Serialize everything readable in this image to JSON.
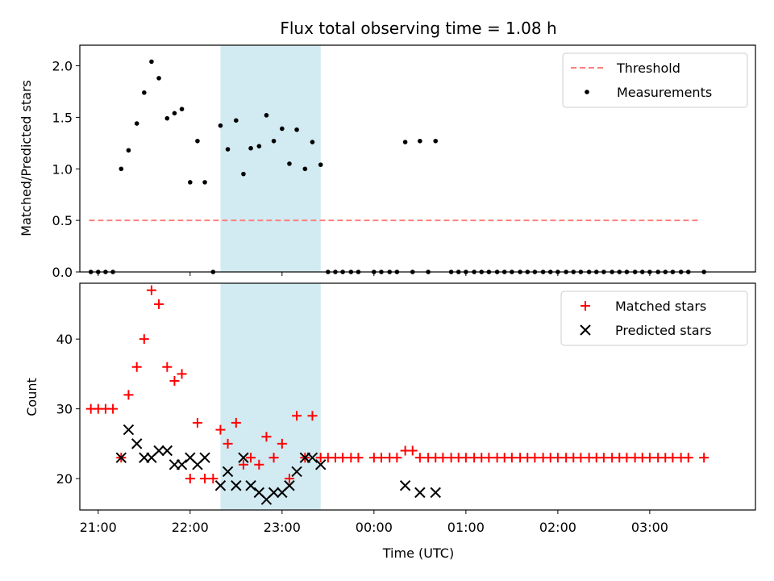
{
  "chart_data": [
    {
      "type": "scatter",
      "title": "Flux total observing time = 1.08 h",
      "ylabel": "Matched/Predicted stars",
      "xlim": [
        -3.2,
        4.15
      ],
      "ylim": [
        0,
        2.2
      ],
      "x_ticks": [
        {
          "value": -3,
          "label": ""
        },
        {
          "value": -2,
          "label": ""
        },
        {
          "value": -1,
          "label": ""
        },
        {
          "value": 0,
          "label": ""
        },
        {
          "value": 1,
          "label": ""
        },
        {
          "value": 2,
          "label": ""
        },
        {
          "value": 3,
          "label": ""
        }
      ],
      "y_ticks": [
        {
          "value": 0,
          "label": "0.0"
        },
        {
          "value": 0.5,
          "label": "0.5"
        },
        {
          "value": 1.0,
          "label": "1.0"
        },
        {
          "value": 1.5,
          "label": "1.5"
        },
        {
          "value": 2.0,
          "label": "2.0"
        }
      ],
      "shaded_region": {
        "x": [
          -1.67,
          -0.58
        ],
        "color": "#add8e6"
      },
      "legend_position": "upper right",
      "series": [
        {
          "name": "Threshold",
          "style": "dashed-line",
          "color": "#ff7f7f",
          "points": [
            [
              -3.1,
              0.5
            ],
            [
              3.55,
              0.5
            ]
          ]
        },
        {
          "name": "Measurements",
          "style": "dot",
          "color": "#000000",
          "points": [
            [
              -3.08,
              0
            ],
            [
              -3.0,
              0
            ],
            [
              -2.92,
              0
            ],
            [
              -2.84,
              0
            ],
            [
              -2.75,
              1.0
            ],
            [
              -2.67,
              1.18
            ],
            [
              -2.58,
              1.44
            ],
            [
              -2.5,
              1.74
            ],
            [
              -2.42,
              2.04
            ],
            [
              -2.34,
              1.88
            ],
            [
              -2.25,
              1.49
            ],
            [
              -2.17,
              1.54
            ],
            [
              -2.09,
              1.58
            ],
            [
              -2.0,
              0.87
            ],
            [
              -1.92,
              1.27
            ],
            [
              -1.84,
              0.87
            ],
            [
              -1.75,
              0
            ],
            [
              -1.67,
              1.42
            ],
            [
              -1.59,
              1.19
            ],
            [
              -1.5,
              1.47
            ],
            [
              -1.42,
              0.95
            ],
            [
              -1.34,
              1.2
            ],
            [
              -1.25,
              1.22
            ],
            [
              -1.17,
              1.52
            ],
            [
              -1.09,
              1.27
            ],
            [
              -1.0,
              1.39
            ],
            [
              -0.92,
              1.05
            ],
            [
              -0.84,
              1.38
            ],
            [
              -0.75,
              1.0
            ],
            [
              -0.67,
              1.26
            ],
            [
              -0.58,
              1.04
            ],
            [
              -0.5,
              0
            ],
            [
              -0.42,
              0
            ],
            [
              -0.34,
              0
            ],
            [
              -0.25,
              0
            ],
            [
              -0.17,
              0
            ],
            [
              0.0,
              0
            ],
            [
              0.08,
              0
            ],
            [
              0.17,
              0
            ],
            [
              0.25,
              0
            ],
            [
              0.34,
              1.26
            ],
            [
              0.42,
              0
            ],
            [
              0.5,
              1.27
            ],
            [
              0.59,
              0
            ],
            [
              0.67,
              1.27
            ],
            [
              0.84,
              0
            ],
            [
              0.92,
              0
            ],
            [
              1.0,
              0
            ],
            [
              1.09,
              0
            ],
            [
              1.17,
              0
            ],
            [
              1.25,
              0
            ],
            [
              1.34,
              0
            ],
            [
              1.42,
              0
            ],
            [
              1.5,
              0
            ],
            [
              1.59,
              0
            ],
            [
              1.67,
              0
            ],
            [
              1.75,
              0
            ],
            [
              1.84,
              0
            ],
            [
              1.92,
              0
            ],
            [
              2.0,
              0
            ],
            [
              2.09,
              0
            ],
            [
              2.17,
              0
            ],
            [
              2.25,
              0
            ],
            [
              2.34,
              0
            ],
            [
              2.42,
              0
            ],
            [
              2.5,
              0
            ],
            [
              2.59,
              0
            ],
            [
              2.67,
              0
            ],
            [
              2.75,
              0
            ],
            [
              2.84,
              0
            ],
            [
              2.92,
              0
            ],
            [
              3.0,
              0
            ],
            [
              3.09,
              0
            ],
            [
              3.17,
              0
            ],
            [
              3.25,
              0
            ],
            [
              3.34,
              0
            ],
            [
              3.42,
              0
            ],
            [
              3.59,
              0
            ]
          ]
        }
      ]
    },
    {
      "type": "scatter",
      "xlabel": "Time (UTC)",
      "ylabel": "Count",
      "xlim": [
        -3.2,
        4.15
      ],
      "ylim": [
        15.5,
        48
      ],
      "x_ticks": [
        {
          "value": -3,
          "label": "21:00"
        },
        {
          "value": -2,
          "label": "22:00"
        },
        {
          "value": -1,
          "label": "23:00"
        },
        {
          "value": 0,
          "label": "00:00"
        },
        {
          "value": 1,
          "label": "01:00"
        },
        {
          "value": 2,
          "label": "02:00"
        },
        {
          "value": 3,
          "label": "03:00"
        }
      ],
      "y_ticks": [
        {
          "value": 20,
          "label": "20"
        },
        {
          "value": 30,
          "label": "30"
        },
        {
          "value": 40,
          "label": "40"
        }
      ],
      "shaded_region": {
        "x": [
          -1.67,
          -0.58
        ],
        "color": "#add8e6"
      },
      "legend_position": "upper right",
      "series": [
        {
          "name": "Matched stars",
          "style": "plus",
          "color": "#ff0000",
          "points": [
            [
              -3.08,
              30
            ],
            [
              -3.0,
              30
            ],
            [
              -2.92,
              30
            ],
            [
              -2.84,
              30
            ],
            [
              -2.75,
              23
            ],
            [
              -2.67,
              32
            ],
            [
              -2.58,
              36
            ],
            [
              -2.5,
              40
            ],
            [
              -2.42,
              47
            ],
            [
              -2.34,
              45
            ],
            [
              -2.25,
              36
            ],
            [
              -2.17,
              34
            ],
            [
              -2.09,
              35
            ],
            [
              -2.0,
              20
            ],
            [
              -1.92,
              28
            ],
            [
              -1.84,
              20
            ],
            [
              -1.75,
              20
            ],
            [
              -1.67,
              27
            ],
            [
              -1.59,
              25
            ],
            [
              -1.5,
              28
            ],
            [
              -1.42,
              22
            ],
            [
              -1.34,
              23
            ],
            [
              -1.25,
              22
            ],
            [
              -1.17,
              26
            ],
            [
              -1.09,
              23
            ],
            [
              -1.0,
              25
            ],
            [
              -0.92,
              20
            ],
            [
              -0.84,
              29
            ],
            [
              -0.75,
              23
            ],
            [
              -0.67,
              29
            ],
            [
              -0.58,
              23
            ],
            [
              -0.5,
              23
            ],
            [
              -0.42,
              23
            ],
            [
              -0.34,
              23
            ],
            [
              -0.25,
              23
            ],
            [
              -0.17,
              23
            ],
            [
              0.0,
              23
            ],
            [
              0.08,
              23
            ],
            [
              0.17,
              23
            ],
            [
              0.25,
              23
            ],
            [
              0.34,
              24
            ],
            [
              0.42,
              24
            ],
            [
              0.5,
              23
            ],
            [
              0.59,
              23
            ],
            [
              0.67,
              23
            ],
            [
              0.75,
              23
            ],
            [
              0.84,
              23
            ],
            [
              0.92,
              23
            ],
            [
              1.0,
              23
            ],
            [
              1.09,
              23
            ],
            [
              1.17,
              23
            ],
            [
              1.25,
              23
            ],
            [
              1.34,
              23
            ],
            [
              1.42,
              23
            ],
            [
              1.5,
              23
            ],
            [
              1.59,
              23
            ],
            [
              1.67,
              23
            ],
            [
              1.75,
              23
            ],
            [
              1.84,
              23
            ],
            [
              1.92,
              23
            ],
            [
              2.0,
              23
            ],
            [
              2.09,
              23
            ],
            [
              2.17,
              23
            ],
            [
              2.25,
              23
            ],
            [
              2.34,
              23
            ],
            [
              2.42,
              23
            ],
            [
              2.5,
              23
            ],
            [
              2.59,
              23
            ],
            [
              2.67,
              23
            ],
            [
              2.75,
              23
            ],
            [
              2.84,
              23
            ],
            [
              2.92,
              23
            ],
            [
              3.0,
              23
            ],
            [
              3.09,
              23
            ],
            [
              3.17,
              23
            ],
            [
              3.25,
              23
            ],
            [
              3.34,
              23
            ],
            [
              3.42,
              23
            ],
            [
              3.59,
              23
            ]
          ]
        },
        {
          "name": "Predicted stars",
          "style": "x",
          "color": "#000000",
          "points": [
            [
              -2.75,
              23
            ],
            [
              -2.67,
              27
            ],
            [
              -2.58,
              25
            ],
            [
              -2.5,
              23
            ],
            [
              -2.42,
              23
            ],
            [
              -2.34,
              24
            ],
            [
              -2.25,
              24
            ],
            [
              -2.17,
              22
            ],
            [
              -2.09,
              22
            ],
            [
              -2.0,
              23
            ],
            [
              -1.92,
              22
            ],
            [
              -1.84,
              23
            ],
            [
              -1.67,
              19
            ],
            [
              -1.59,
              21
            ],
            [
              -1.5,
              19
            ],
            [
              -1.42,
              23
            ],
            [
              -1.34,
              19
            ],
            [
              -1.25,
              18
            ],
            [
              -1.17,
              17
            ],
            [
              -1.09,
              18
            ],
            [
              -1.0,
              18
            ],
            [
              -0.92,
              19
            ],
            [
              -0.84,
              21
            ],
            [
              -0.75,
              23
            ],
            [
              -0.67,
              23
            ],
            [
              -0.58,
              22
            ],
            [
              0.34,
              19
            ],
            [
              0.5,
              18
            ],
            [
              0.67,
              18
            ]
          ]
        }
      ]
    }
  ]
}
